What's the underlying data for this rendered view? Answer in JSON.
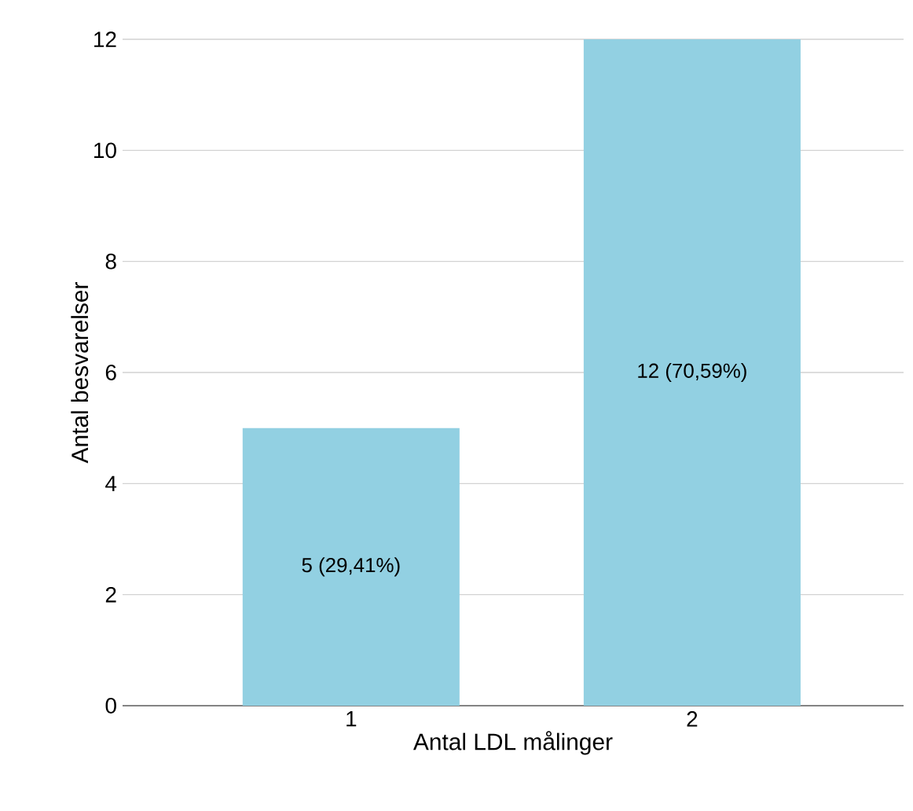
{
  "chart_data": {
    "type": "bar",
    "xlabel": "Antal LDL målinger",
    "ylabel": "Antal besvarelser",
    "categories": [
      "1",
      "2"
    ],
    "values": [
      5,
      12
    ],
    "value_labels": [
      "5 (29,41%)",
      "12 (70,59%)"
    ],
    "color": "#92d0e2",
    "ylim": [
      0,
      12
    ],
    "yticks": [
      0,
      2,
      4,
      6,
      8,
      10,
      12
    ],
    "grid": "y"
  }
}
